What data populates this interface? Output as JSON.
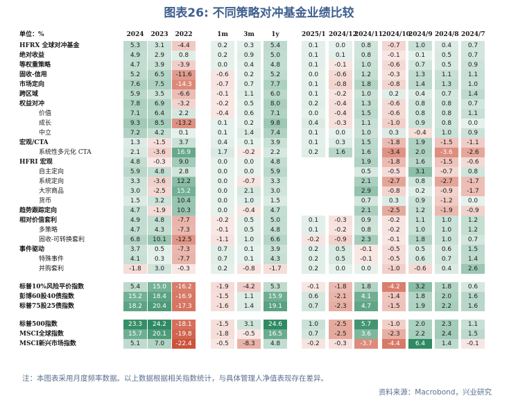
{
  "title": "图表26: 不同策略对冲基金业绩比较",
  "note": "注：本图表采用月度频率数据。以上数据根据相关指数统计，与具体管理人净值表现存在差异。",
  "source": "资料来源：Macrobond，兴业研究",
  "colors": {
    "negative": "#c8472e",
    "positive": "#2f8a62",
    "title": "#3f5f8f"
  },
  "chart_data": {
    "type": "table",
    "header_label": "单位：%",
    "columns": [
      "2024",
      "2023",
      "2022",
      "1m",
      "3m",
      "1y",
      "2025/1",
      "2024/12",
      "2024/11",
      "2024/10",
      "2024/9",
      "2024/8",
      "2024/7"
    ],
    "rows": [
      {
        "label": "HFRX 全球对冲基金",
        "indent": 0,
        "values": [
          5.3,
          3.1,
          -4.4,
          0.2,
          0.3,
          5.4,
          0.1,
          0.0,
          0.8,
          -0.7,
          1.0,
          0.4,
          0.7
        ]
      },
      {
        "label": "绝对收益",
        "indent": 0,
        "values": [
          4.9,
          2.9,
          0.8,
          0.2,
          0.9,
          5.0,
          0.1,
          0.1,
          0.8,
          -0.1,
          0.1,
          0.5,
          0.7
        ]
      },
      {
        "label": "等权重策略",
        "indent": 0,
        "values": [
          4.7,
          3.9,
          -3.9,
          0.0,
          0.4,
          4.8,
          0.1,
          -0.1,
          1.0,
          -0.6,
          0.7,
          0.5,
          0.9
        ]
      },
      {
        "label": "固收-信用",
        "indent": 0,
        "values": [
          5.2,
          6.5,
          -11.6,
          -0.6,
          0.2,
          5.2,
          0.0,
          -0.6,
          1.2,
          -0.3,
          1.3,
          1.1,
          1.1
        ]
      },
      {
        "label": "市场定向",
        "indent": 0,
        "values": [
          7.6,
          7.5,
          -14.3,
          -0.7,
          0.7,
          7.7,
          0.1,
          -0.8,
          1.8,
          -0.8,
          1.4,
          1.3,
          1.0
        ]
      },
      {
        "label": "跨区域",
        "indent": 0,
        "values": [
          5.9,
          3.5,
          -6.6,
          -0.1,
          1.1,
          6.0,
          0.1,
          -0.2,
          1.0,
          0.2,
          0.4,
          0.7,
          1.4
        ]
      },
      {
        "label": "权益对冲",
        "indent": 0,
        "values": [
          7.8,
          6.9,
          -3.2,
          -0.2,
          0.5,
          8.0,
          0.2,
          -0.4,
          1.3,
          -0.6,
          0.8,
          0.8,
          0.7
        ]
      },
      {
        "label": "价值",
        "indent": 1,
        "values": [
          7.1,
          6.4,
          2.2,
          -0.4,
          0.6,
          7.1,
          0.0,
          -0.4,
          1.5,
          -0.6,
          0.8,
          0.8,
          1.1
        ]
      },
      {
        "label": "成长",
        "indent": 1,
        "values": [
          9.3,
          8.5,
          -13.2,
          0.1,
          0.2,
          9.8,
          0.4,
          -0.3,
          1.1,
          -1.0,
          0.9,
          0.8,
          0.0
        ]
      },
      {
        "label": "中立",
        "indent": 1,
        "values": [
          7.2,
          4.2,
          0.1,
          0.1,
          1.4,
          7.4,
          0.1,
          0.0,
          1.0,
          0.3,
          -0.4,
          1.0,
          0.9
        ]
      },
      {
        "label": "宏观/CTA",
        "indent": 0,
        "values": [
          1.3,
          -1.5,
          3.7,
          0.4,
          0.1,
          3.9,
          0.1,
          0.3,
          1.5,
          -1.8,
          1.9,
          -1.5,
          -1.1
        ]
      },
      {
        "label": "系统性多元化 CTA",
        "indent": 1,
        "values": [
          2.1,
          -3.6,
          16.9,
          1.7,
          -0.2,
          2.2,
          0.2,
          1.6,
          1.6,
          -3.4,
          2.0,
          -3.6,
          -2.6
        ]
      },
      {
        "label": "HFRI 宏观",
        "indent": 0,
        "values": [
          4.8,
          -0.3,
          9.0,
          0.0,
          0.0,
          4.8,
          null,
          null,
          1.9,
          -1.8,
          1.6,
          -1.5,
          -0.6
        ]
      },
      {
        "label": "自主定向",
        "indent": 1,
        "values": [
          5.9,
          4.8,
          2.8,
          0.0,
          0.0,
          5.9,
          null,
          null,
          0.5,
          -0.5,
          3.1,
          -0.7,
          0.8
        ]
      },
      {
        "label": "系统定向",
        "indent": 1,
        "values": [
          3.3,
          -3.6,
          12.2,
          0.0,
          -0.7,
          3.3,
          null,
          null,
          2.1,
          -2.7,
          0.8,
          -2.7,
          -1.7
        ]
      },
      {
        "label": "大宗商品",
        "indent": 1,
        "values": [
          3.0,
          -2.5,
          15.2,
          0.0,
          2.1,
          3.0,
          null,
          null,
          2.9,
          -0.8,
          0.2,
          -0.9,
          -1.7
        ]
      },
      {
        "label": "货币",
        "indent": 1,
        "values": [
          1.5,
          3.2,
          10.4,
          0.0,
          1.0,
          1.5,
          null,
          null,
          0.7,
          0.3,
          0.9,
          -1.2,
          0.0
        ]
      },
      {
        "label": "趋势跟踪定向",
        "indent": 0,
        "values": [
          4.7,
          -1.9,
          10.3,
          0.0,
          -0.4,
          4.7,
          null,
          null,
          2.1,
          -2.5,
          1.2,
          -1.9,
          -0.9
        ]
      },
      {
        "label": "相对价值套利",
        "indent": 0,
        "values": [
          4.9,
          4.8,
          -7.7,
          -0.2,
          0.5,
          5.0,
          0.1,
          -0.3,
          0.9,
          -0.2,
          1.1,
          1.0,
          1.2
        ]
      },
      {
        "label": "多策略",
        "indent": 1,
        "values": [
          4.7,
          4.3,
          -7.3,
          -0.1,
          0.5,
          4.8,
          0.1,
          -0.2,
          0.8,
          -0.2,
          1.0,
          1.0,
          1.2
        ]
      },
      {
        "label": "固收-可转换套利",
        "indent": 1,
        "values": [
          6.8,
          10.1,
          -12.5,
          -1.1,
          1.0,
          6.6,
          -0.2,
          -0.9,
          2.3,
          -0.1,
          1.8,
          1.0,
          0.7
        ]
      },
      {
        "label": "事件驱动",
        "indent": 0,
        "values": [
          3.7,
          0.5,
          -7.3,
          0.7,
          0.1,
          3.9,
          0.2,
          0.5,
          -0.1,
          -0.5,
          0.5,
          0.6,
          1.5
        ]
      },
      {
        "label": "特殊事件",
        "indent": 1,
        "values": [
          4.1,
          0.3,
          -7.7,
          0.7,
          0.1,
          4.3,
          0.2,
          0.5,
          -0.1,
          -0.5,
          0.6,
          0.7,
          1.4
        ]
      },
      {
        "label": "并购套利",
        "indent": 1,
        "values": [
          -1.8,
          3.0,
          -0.3,
          0.2,
          -0.8,
          -1.7,
          0.2,
          0.0,
          0.0,
          -1.0,
          -0.6,
          0.4,
          2.6
        ]
      },
      {
        "label": "标普10%风险平价指数",
        "indent": 0,
        "gap": true,
        "values": [
          5.4,
          15.0,
          -16.2,
          -1.9,
          -4.2,
          5.3,
          -0.1,
          -1.8,
          1.8,
          -4.2,
          3.2,
          1.8,
          0.6
        ]
      },
      {
        "label": "彭博60股40债指数",
        "indent": 0,
        "values": [
          15.2,
          18.4,
          -16.9,
          -1.5,
          1.1,
          15.9,
          0.6,
          -2.1,
          4.1,
          -1.4,
          1.8,
          2.0,
          1.6
        ]
      },
      {
        "label": "标普75股25债指数",
        "indent": 0,
        "values": [
          18.2,
          20.4,
          -17.3,
          -1.6,
          1.4,
          19.1,
          0.7,
          -2.3,
          4.7,
          -1.5,
          1.9,
          2.2,
          1.6
        ]
      },
      {
        "label": "标普500指数",
        "indent": 0,
        "gap": true,
        "values": [
          23.3,
          24.2,
          -18.1,
          -1.5,
          3.1,
          24.6,
          1.0,
          -2.5,
          5.7,
          -1.0,
          2.0,
          2.3,
          1.1
        ]
      },
      {
        "label": "MSCI全球指数",
        "indent": 0,
        "values": [
          15.7,
          20.1,
          -19.8,
          -1.8,
          -0.5,
          16.5,
          0.7,
          -2.5,
          3.6,
          -2.3,
          2.2,
          2.4,
          1.5
        ]
      },
      {
        "label": "MSCI新兴市场指数",
        "indent": 0,
        "values": [
          5.1,
          7.0,
          -22.4,
          -0.5,
          -8.3,
          4.8,
          -0.2,
          -0.3,
          -3.7,
          -4.4,
          6.4,
          1.4,
          -0.1
        ]
      }
    ]
  }
}
